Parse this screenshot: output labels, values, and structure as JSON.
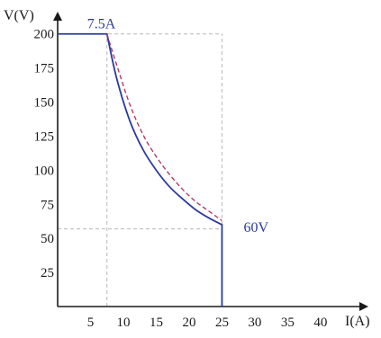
{
  "chart_data": {
    "type": "line",
    "title": "",
    "xlabel": "I(A)",
    "ylabel": "V(V)",
    "xlim": [
      0,
      47
    ],
    "ylim": [
      0,
      215
    ],
    "xticks": [
      5,
      10,
      15,
      20,
      25,
      30,
      35,
      40
    ],
    "xtick_labels": [
      "5",
      "10",
      "15",
      "20",
      "25",
      "30",
      "35",
      "40"
    ],
    "yticks": [
      25,
      50,
      75,
      100,
      125,
      150,
      175,
      200
    ],
    "ytick_labels": [
      "25",
      "50",
      "75",
      "100",
      "125",
      "150",
      "175",
      "200"
    ],
    "grid": false,
    "series": [
      {
        "style": "solid",
        "color": "#2b3a9e",
        "x": [
          0,
          7.5,
          9,
          11,
          13,
          15,
          17,
          19,
          21,
          23,
          25,
          25
        ],
        "y": [
          200,
          200,
          167,
          136,
          115,
          100,
          88,
          79,
          71,
          65,
          60,
          0
        ]
      },
      {
        "style": "dashed",
        "color": "#b03060",
        "x": [
          7.5,
          9,
          11,
          13,
          15,
          17,
          19,
          21,
          23,
          25
        ],
        "y": [
          200,
          177,
          148,
          126,
          110,
          97,
          86,
          77,
          70,
          63
        ]
      }
    ],
    "reference_lines": {
      "vertical_x": [
        7.5,
        25
      ],
      "horizontal_y": [
        200,
        57
      ]
    },
    "annotations": [
      {
        "text": "7.5A",
        "x": 7.5,
        "y": 200
      },
      {
        "text": "60V",
        "x": 25,
        "y": 60
      }
    ],
    "colors": {
      "axis": "#1a1a1a",
      "curve": "#2b3a9e",
      "dashed": "#b03060",
      "guide": "#b8b8b8"
    }
  }
}
